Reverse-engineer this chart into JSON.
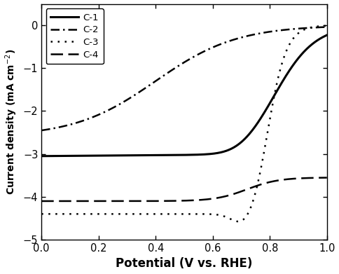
{
  "xlabel": "Potential (V vs. RHE)",
  "ylabel": "Current density (mA cm$^{-2}$)",
  "xlim": [
    0.0,
    1.0
  ],
  "ylim": [
    -5.0,
    0.5
  ],
  "yticks": [
    -5,
    -4,
    -3,
    -2,
    -1,
    0
  ],
  "xticks": [
    0.0,
    0.2,
    0.4,
    0.6,
    0.8,
    1.0
  ],
  "background_color": "#ffffff",
  "linewidth": 1.8
}
